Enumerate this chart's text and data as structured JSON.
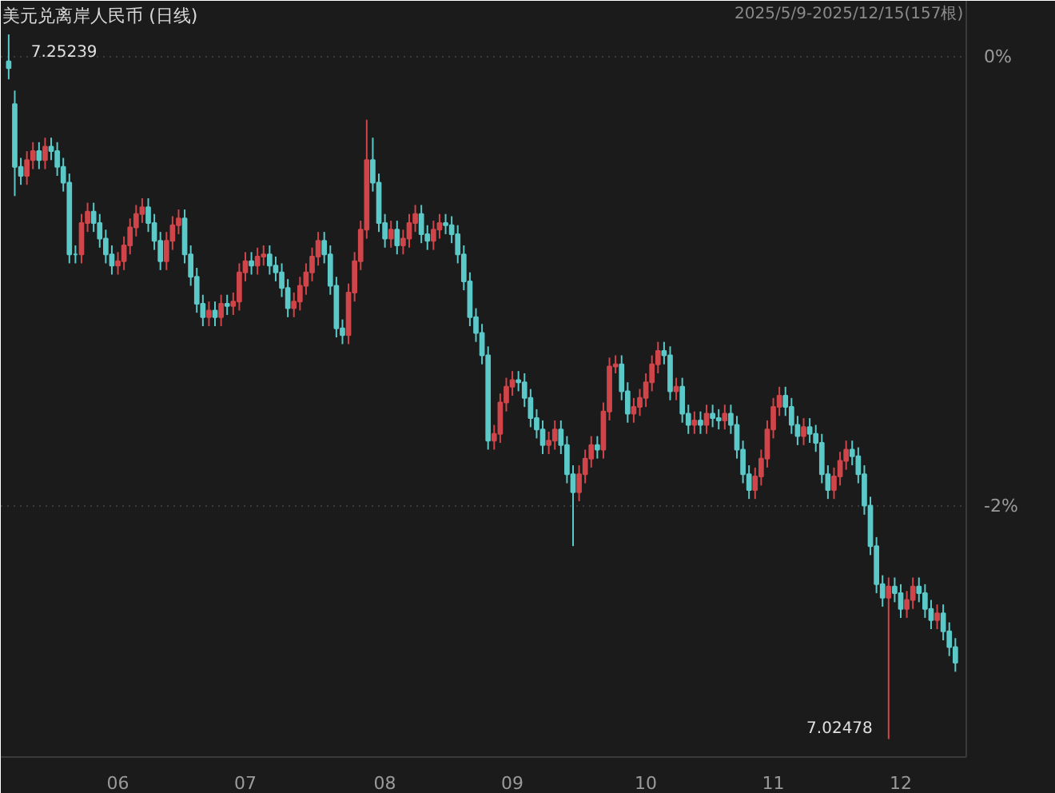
{
  "chart_data": {
    "type": "candlestick",
    "title": "美元兑离岸人民币 (日线)",
    "subtitle": "2025/5/9-2025/12/15(157根)",
    "categories": [
      null,
      null,
      null,
      null,
      null,
      null,
      null,
      null,
      null,
      null,
      null,
      null,
      null,
      null,
      null,
      null,
      null,
      null,
      "06",
      null,
      null,
      null,
      null,
      null,
      null,
      null,
      null,
      null,
      null,
      null,
      null,
      null,
      null,
      null,
      null,
      null,
      null,
      null,
      null,
      "07",
      null,
      null,
      null,
      null,
      null,
      null,
      null,
      null,
      null,
      null,
      null,
      null,
      null,
      null,
      null,
      null,
      null,
      null,
      null,
      null,
      null,
      null,
      "08",
      null,
      null,
      null,
      null,
      null,
      null,
      null,
      null,
      null,
      null,
      null,
      null,
      null,
      null,
      null,
      null,
      null,
      null,
      null,
      null,
      "09",
      null,
      null,
      null,
      null,
      null,
      null,
      null,
      null,
      null,
      null,
      null,
      null,
      null,
      null,
      null,
      null,
      null,
      null,
      null,
      null,
      null,
      "10",
      null,
      null,
      null,
      null,
      null,
      null,
      null,
      null,
      null,
      null,
      null,
      null,
      null,
      null,
      null,
      null,
      null,
      null,
      null,
      null,
      "11",
      null,
      null,
      null,
      null,
      null,
      null,
      null,
      null,
      null,
      null,
      null,
      null,
      null,
      null,
      null,
      null,
      null,
      null,
      null,
      null,
      "12",
      null,
      null,
      null,
      null,
      null,
      null,
      null,
      null,
      null
    ],
    "ylim": [
      -3.12,
      0.25
    ],
    "yticks": [
      {
        "value": 0,
        "label": "0%"
      },
      {
        "value": -2,
        "label": "-2%"
      }
    ],
    "grid": "y",
    "annotations": [
      "7.25239",
      "7.02478"
    ],
    "ohlc": [
      [
        -0.02,
        0.1,
        -0.1,
        -0.05
      ],
      [
        -0.21,
        -0.15,
        -0.62,
        -0.49
      ],
      [
        -0.49,
        -0.45,
        -0.57,
        -0.53
      ],
      [
        -0.53,
        -0.42,
        -0.57,
        -0.46
      ],
      [
        -0.46,
        -0.38,
        -0.5,
        -0.42
      ],
      [
        -0.42,
        -0.38,
        -0.5,
        -0.46
      ],
      [
        -0.46,
        -0.36,
        -0.5,
        -0.4
      ],
      [
        -0.4,
        -0.36,
        -0.46,
        -0.42
      ],
      [
        -0.42,
        -0.38,
        -0.53,
        -0.49
      ],
      [
        -0.49,
        -0.45,
        -0.6,
        -0.56
      ],
      [
        -0.56,
        -0.52,
        -0.92,
        -0.88
      ],
      [
        -0.88,
        -0.84,
        -0.92,
        -0.88
      ],
      [
        -0.88,
        -0.7,
        -0.92,
        -0.74
      ],
      [
        -0.74,
        -0.65,
        -0.78,
        -0.69
      ],
      [
        -0.69,
        -0.65,
        -0.78,
        -0.74
      ],
      [
        -0.74,
        -0.7,
        -0.85,
        -0.81
      ],
      [
        -0.81,
        -0.77,
        -0.92,
        -0.88
      ],
      [
        -0.88,
        -0.84,
        -0.97,
        -0.93
      ],
      [
        -0.93,
        -0.87,
        -0.97,
        -0.91
      ],
      [
        -0.91,
        -0.8,
        -0.95,
        -0.84
      ],
      [
        -0.84,
        -0.72,
        -0.88,
        -0.76
      ],
      [
        -0.76,
        -0.66,
        -0.8,
        -0.7
      ],
      [
        -0.7,
        -0.63,
        -0.74,
        -0.67
      ],
      [
        -0.67,
        -0.63,
        -0.78,
        -0.74
      ],
      [
        -0.74,
        -0.7,
        -0.86,
        -0.82
      ],
      [
        -0.82,
        -0.78,
        -0.95,
        -0.91
      ],
      [
        -0.91,
        -0.78,
        -0.95,
        -0.82
      ],
      [
        -0.82,
        -0.71,
        -0.86,
        -0.75
      ],
      [
        -0.75,
        -0.68,
        -0.79,
        -0.72
      ],
      [
        -0.72,
        -0.68,
        -0.92,
        -0.88
      ],
      [
        -0.88,
        -0.84,
        -1.02,
        -0.98
      ],
      [
        -0.98,
        -0.94,
        -1.14,
        -1.1
      ],
      [
        -1.1,
        -1.06,
        -1.2,
        -1.16
      ],
      [
        -1.16,
        -1.09,
        -1.2,
        -1.13
      ],
      [
        -1.13,
        -1.09,
        -1.2,
        -1.16
      ],
      [
        -1.16,
        -1.06,
        -1.2,
        -1.1
      ],
      [
        -1.1,
        -1.06,
        -1.15,
        -1.11
      ],
      [
        -1.11,
        -1.05,
        -1.15,
        -1.09
      ],
      [
        -1.09,
        -0.92,
        -1.13,
        -0.96
      ],
      [
        -0.96,
        -0.87,
        -1.0,
        -0.91
      ],
      [
        -0.91,
        -0.87,
        -0.97,
        -0.93
      ],
      [
        -0.93,
        -0.85,
        -0.97,
        -0.89
      ],
      [
        -0.89,
        -0.84,
        -0.93,
        -0.88
      ],
      [
        -0.88,
        -0.84,
        -0.97,
        -0.93
      ],
      [
        -0.93,
        -0.89,
        -1.0,
        -0.96
      ],
      [
        -0.96,
        -0.92,
        -1.07,
        -1.03
      ],
      [
        -1.03,
        -0.99,
        -1.16,
        -1.12
      ],
      [
        -1.12,
        -1.05,
        -1.16,
        -1.09
      ],
      [
        -1.09,
        -0.98,
        -1.13,
        -1.02
      ],
      [
        -1.02,
        -0.92,
        -1.06,
        -0.96
      ],
      [
        -0.96,
        -0.85,
        -1.0,
        -0.89
      ],
      [
        -0.89,
        -0.78,
        -0.93,
        -0.82
      ],
      [
        -0.82,
        -0.78,
        -0.92,
        -0.88
      ],
      [
        -0.88,
        -0.84,
        -1.06,
        -1.02
      ],
      [
        -1.02,
        -0.98,
        -1.25,
        -1.21
      ],
      [
        -1.21,
        -1.17,
        -1.28,
        -1.24
      ],
      [
        -1.24,
        -1.01,
        -1.28,
        -1.05
      ],
      [
        -1.05,
        -0.87,
        -1.09,
        -0.91
      ],
      [
        -0.91,
        -0.73,
        -0.95,
        -0.77
      ],
      [
        -0.77,
        -0.28,
        -0.81,
        -0.46
      ],
      [
        -0.46,
        -0.36,
        -0.6,
        -0.56
      ],
      [
        -0.56,
        -0.52,
        -0.78,
        -0.74
      ],
      [
        -0.74,
        -0.7,
        -0.85,
        -0.81
      ],
      [
        -0.81,
        -0.73,
        -0.85,
        -0.77
      ],
      [
        -0.77,
        -0.73,
        -0.88,
        -0.84
      ],
      [
        -0.84,
        -0.77,
        -0.88,
        -0.81
      ],
      [
        -0.81,
        -0.7,
        -0.85,
        -0.74
      ],
      [
        -0.74,
        -0.66,
        -0.78,
        -0.7
      ],
      [
        -0.7,
        -0.66,
        -0.83,
        -0.79
      ],
      [
        -0.79,
        -0.75,
        -0.86,
        -0.82
      ],
      [
        -0.82,
        -0.73,
        -0.86,
        -0.77
      ],
      [
        -0.77,
        -0.7,
        -0.81,
        -0.74
      ],
      [
        -0.74,
        -0.7,
        -0.79,
        -0.75
      ],
      [
        -0.75,
        -0.71,
        -0.83,
        -0.79
      ],
      [
        -0.79,
        -0.75,
        -0.92,
        -0.88
      ],
      [
        -0.88,
        -0.84,
        -1.04,
        -1.0
      ],
      [
        -1.0,
        -0.96,
        -1.2,
        -1.16
      ],
      [
        -1.16,
        -1.12,
        -1.27,
        -1.23
      ],
      [
        -1.23,
        -1.19,
        -1.37,
        -1.33
      ],
      [
        -1.33,
        -1.29,
        -1.75,
        -1.71
      ],
      [
        -1.71,
        -1.64,
        -1.75,
        -1.68
      ],
      [
        -1.68,
        -1.5,
        -1.72,
        -1.54
      ],
      [
        -1.54,
        -1.43,
        -1.58,
        -1.47
      ],
      [
        -1.47,
        -1.4,
        -1.51,
        -1.44
      ],
      [
        -1.44,
        -1.4,
        -1.49,
        -1.45
      ],
      [
        -1.45,
        -1.41,
        -1.56,
        -1.52
      ],
      [
        -1.52,
        -1.48,
        -1.65,
        -1.61
      ],
      [
        -1.61,
        -1.57,
        -1.7,
        -1.66
      ],
      [
        -1.66,
        -1.62,
        -1.77,
        -1.73
      ],
      [
        -1.73,
        -1.67,
        -1.77,
        -1.71
      ],
      [
        -1.71,
        -1.62,
        -1.75,
        -1.66
      ],
      [
        -1.66,
        -1.62,
        -1.77,
        -1.73
      ],
      [
        -1.73,
        -1.69,
        -1.9,
        -1.86
      ],
      [
        -1.86,
        -1.82,
        -2.18,
        -1.94
      ],
      [
        -1.94,
        -1.82,
        -1.98,
        -1.86
      ],
      [
        -1.86,
        -1.75,
        -1.9,
        -1.79
      ],
      [
        -1.79,
        -1.69,
        -1.83,
        -1.73
      ],
      [
        -1.73,
        -1.69,
        -1.79,
        -1.75
      ],
      [
        -1.75,
        -1.54,
        -1.79,
        -1.58
      ],
      [
        -1.58,
        -1.34,
        -1.62,
        -1.38
      ],
      [
        -1.38,
        -1.33,
        -1.41,
        -1.37
      ],
      [
        -1.37,
        -1.33,
        -1.53,
        -1.49
      ],
      [
        -1.49,
        -1.45,
        -1.63,
        -1.59
      ],
      [
        -1.59,
        -1.52,
        -1.63,
        -1.56
      ],
      [
        -1.56,
        -1.48,
        -1.6,
        -1.52
      ],
      [
        -1.52,
        -1.41,
        -1.56,
        -1.45
      ],
      [
        -1.45,
        -1.33,
        -1.49,
        -1.37
      ],
      [
        -1.37,
        -1.27,
        -1.41,
        -1.31
      ],
      [
        -1.31,
        -1.27,
        -1.37,
        -1.33
      ],
      [
        -1.33,
        -1.29,
        -1.53,
        -1.49
      ],
      [
        -1.49,
        -1.43,
        -1.53,
        -1.47
      ],
      [
        -1.47,
        -1.43,
        -1.63,
        -1.59
      ],
      [
        -1.59,
        -1.55,
        -1.68,
        -1.64
      ],
      [
        -1.64,
        -1.58,
        -1.68,
        -1.62
      ],
      [
        -1.62,
        -1.58,
        -1.68,
        -1.64
      ],
      [
        -1.64,
        -1.55,
        -1.68,
        -1.59
      ],
      [
        -1.59,
        -1.55,
        -1.65,
        -1.61
      ],
      [
        -1.61,
        -1.57,
        -1.66,
        -1.62
      ],
      [
        -1.62,
        -1.55,
        -1.66,
        -1.59
      ],
      [
        -1.59,
        -1.55,
        -1.68,
        -1.64
      ],
      [
        -1.64,
        -1.6,
        -1.79,
        -1.75
      ],
      [
        -1.75,
        -1.71,
        -1.9,
        -1.86
      ],
      [
        -1.86,
        -1.82,
        -1.97,
        -1.93
      ],
      [
        -1.93,
        -1.83,
        -1.97,
        -1.87
      ],
      [
        -1.87,
        -1.75,
        -1.91,
        -1.79
      ],
      [
        -1.79,
        -1.62,
        -1.83,
        -1.66
      ],
      [
        -1.66,
        -1.52,
        -1.7,
        -1.56
      ],
      [
        -1.56,
        -1.47,
        -1.6,
        -1.51
      ],
      [
        -1.51,
        -1.47,
        -1.6,
        -1.56
      ],
      [
        -1.56,
        -1.52,
        -1.68,
        -1.64
      ],
      [
        -1.64,
        -1.6,
        -1.73,
        -1.69
      ],
      [
        -1.69,
        -1.61,
        -1.73,
        -1.65
      ],
      [
        -1.65,
        -1.61,
        -1.72,
        -1.68
      ],
      [
        -1.68,
        -1.64,
        -1.76,
        -1.72
      ],
      [
        -1.72,
        -1.68,
        -1.9,
        -1.86
      ],
      [
        -1.86,
        -1.82,
        -1.97,
        -1.93
      ],
      [
        -1.93,
        -1.83,
        -1.97,
        -1.87
      ],
      [
        -1.87,
        -1.76,
        -1.91,
        -1.8
      ],
      [
        -1.8,
        -1.71,
        -1.84,
        -1.75
      ],
      [
        -1.75,
        -1.71,
        -1.82,
        -1.78
      ],
      [
        -1.78,
        -1.74,
        -1.9,
        -1.86
      ],
      [
        -1.86,
        -1.82,
        -2.04,
        -2.0
      ],
      [
        -2.0,
        -1.96,
        -2.22,
        -2.18
      ],
      [
        -2.18,
        -2.14,
        -2.39,
        -2.35
      ],
      [
        -2.35,
        -2.31,
        -2.45,
        -2.41
      ],
      [
        -2.41,
        -2.32,
        -3.04,
        -2.36
      ],
      [
        -2.36,
        -2.32,
        -2.43,
        -2.39
      ],
      [
        -2.39,
        -2.35,
        -2.5,
        -2.46
      ],
      [
        -2.46,
        -2.38,
        -2.5,
        -2.42
      ],
      [
        -2.42,
        -2.32,
        -2.46,
        -2.36
      ],
      [
        -2.36,
        -2.32,
        -2.43,
        -2.39
      ],
      [
        -2.39,
        -2.35,
        -2.5,
        -2.46
      ],
      [
        -2.46,
        -2.42,
        -2.55,
        -2.51
      ],
      [
        -2.51,
        -2.44,
        -2.55,
        -2.48
      ],
      [
        -2.48,
        -2.44,
        -2.6,
        -2.56
      ],
      [
        -2.56,
        -2.52,
        -2.67,
        -2.63
      ],
      [
        -2.63,
        -2.59,
        -2.74,
        -2.7
      ]
    ]
  }
}
